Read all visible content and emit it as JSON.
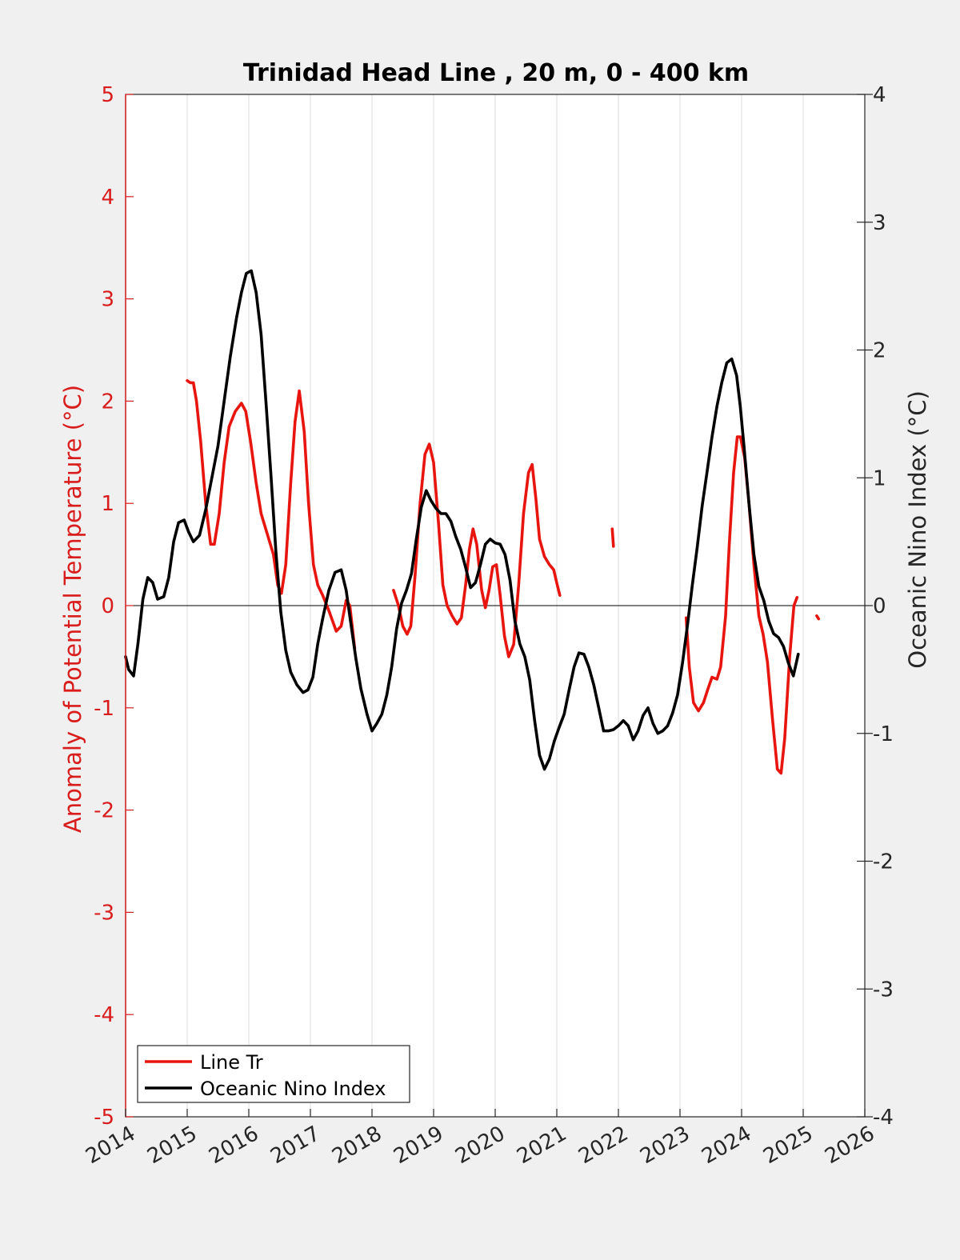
{
  "chart_data": {
    "type": "line",
    "title": "Trinidad Head Line , 20 m, 0 - 400 km",
    "ylabel_left": "Anomaly of Potential Temperature (°C)",
    "ylabel_right": "Oceanic Nino Index (°C)",
    "xlabel": "",
    "xlim": [
      2014,
      2026
    ],
    "ylim_left": [
      -5,
      5
    ],
    "ylim_right": [
      -4,
      4
    ],
    "xticks": [
      "2014",
      "2015",
      "2016",
      "2017",
      "2018",
      "2019",
      "2020",
      "2021",
      "2022",
      "2023",
      "2024",
      "2025",
      "2026"
    ],
    "yticks_left": [
      "5",
      "4",
      "3",
      "2",
      "1",
      "0",
      "-1",
      "-2",
      "-3",
      "-4",
      "-5"
    ],
    "yticks_right": [
      "4",
      "3",
      "2",
      "1",
      "0",
      "-1",
      "-2",
      "-3",
      "-4"
    ],
    "grid": "vertical",
    "zero_line": true,
    "legend_position": "bottom-left",
    "colors": {
      "line_tr": "#e8150f",
      "oni": "#000000",
      "left_axis": "#d91c1c",
      "background": "#f0f0f0",
      "plot_bg": "#ffffff",
      "grid": "#dddddd"
    },
    "series": [
      {
        "name": "Line Tr",
        "axis": "left",
        "color": "#e8150f",
        "segments": [
          [
            [
              2015.0,
              2.2
            ],
            [
              2015.05,
              2.18
            ],
            [
              2015.1,
              2.18
            ],
            [
              2015.15,
              2.0
            ],
            [
              2015.22,
              1.6
            ],
            [
              2015.3,
              1.0
            ],
            [
              2015.38,
              0.6
            ],
            [
              2015.44,
              0.6
            ],
            [
              2015.52,
              0.9
            ],
            [
              2015.6,
              1.4
            ],
            [
              2015.68,
              1.75
            ],
            [
              2015.78,
              1.9
            ],
            [
              2015.88,
              1.98
            ],
            [
              2015.95,
              1.9
            ],
            [
              2016.03,
              1.6
            ],
            [
              2016.12,
              1.2
            ],
            [
              2016.2,
              0.9
            ],
            [
              2016.3,
              0.7
            ],
            [
              2016.4,
              0.5
            ],
            [
              2016.47,
              0.2
            ],
            [
              2016.53,
              0.12
            ],
            [
              2016.6,
              0.4
            ],
            [
              2016.68,
              1.2
            ],
            [
              2016.75,
              1.8
            ],
            [
              2016.82,
              2.1
            ],
            [
              2016.9,
              1.7
            ],
            [
              2016.97,
              1.0
            ],
            [
              2017.05,
              0.4
            ],
            [
              2017.12,
              0.2
            ],
            [
              2017.2,
              0.1
            ],
            [
              2017.3,
              -0.05
            ],
            [
              2017.42,
              -0.25
            ],
            [
              2017.5,
              -0.2
            ],
            [
              2017.58,
              0.05
            ],
            [
              2017.64,
              0.0
            ],
            [
              2017.72,
              -0.42
            ]
          ],
          [
            [
              2018.35,
              0.15
            ],
            [
              2018.43,
              0.0
            ],
            [
              2018.5,
              -0.2
            ],
            [
              2018.57,
              -0.28
            ],
            [
              2018.63,
              -0.2
            ],
            [
              2018.7,
              0.3
            ],
            [
              2018.78,
              1.0
            ],
            [
              2018.86,
              1.48
            ],
            [
              2018.93,
              1.58
            ],
            [
              2019.0,
              1.4
            ],
            [
              2019.08,
              0.8
            ],
            [
              2019.15,
              0.2
            ],
            [
              2019.22,
              0.0
            ],
            [
              2019.3,
              -0.1
            ],
            [
              2019.38,
              -0.18
            ],
            [
              2019.45,
              -0.12
            ],
            [
              2019.52,
              0.2
            ],
            [
              2019.58,
              0.55
            ],
            [
              2019.64,
              0.75
            ],
            [
              2019.7,
              0.6
            ],
            [
              2019.78,
              0.15
            ],
            [
              2019.84,
              -0.02
            ],
            [
              2019.9,
              0.15
            ],
            [
              2019.96,
              0.38
            ],
            [
              2020.02,
              0.4
            ],
            [
              2020.08,
              0.1
            ],
            [
              2020.15,
              -0.3
            ],
            [
              2020.22,
              -0.5
            ],
            [
              2020.3,
              -0.38
            ],
            [
              2020.38,
              0.2
            ],
            [
              2020.46,
              0.9
            ],
            [
              2020.54,
              1.3
            ],
            [
              2020.6,
              1.38
            ],
            [
              2020.66,
              1.05
            ],
            [
              2020.72,
              0.65
            ],
            [
              2020.8,
              0.48
            ],
            [
              2020.88,
              0.4
            ],
            [
              2020.95,
              0.35
            ],
            [
              2021.0,
              0.22
            ],
            [
              2021.05,
              0.1
            ]
          ]
        ],
        "segments_2": [
          [
            [
              2021.9,
              0.75
            ],
            [
              2021.92,
              0.58
            ]
          ],
          [
            [
              2023.1,
              -0.12
            ],
            [
              2023.15,
              -0.6
            ],
            [
              2023.22,
              -0.95
            ],
            [
              2023.3,
              -1.03
            ],
            [
              2023.38,
              -0.95
            ],
            [
              2023.45,
              -0.82
            ],
            [
              2023.52,
              -0.7
            ],
            [
              2023.6,
              -0.72
            ],
            [
              2023.66,
              -0.6
            ],
            [
              2023.74,
              -0.1
            ],
            [
              2023.8,
              0.6
            ],
            [
              2023.87,
              1.3
            ],
            [
              2023.93,
              1.65
            ],
            [
              2023.98,
              1.65
            ],
            [
              2024.05,
              1.45
            ],
            [
              2024.12,
              1.0
            ],
            [
              2024.2,
              0.4
            ],
            [
              2024.28,
              -0.1
            ],
            [
              2024.35,
              -0.28
            ],
            [
              2024.42,
              -0.55
            ],
            [
              2024.5,
              -1.1
            ],
            [
              2024.58,
              -1.6
            ],
            [
              2024.64,
              -1.64
            ],
            [
              2024.7,
              -1.3
            ],
            [
              2024.78,
              -0.5
            ],
            [
              2024.85,
              0.0
            ],
            [
              2024.9,
              0.08
            ]
          ],
          [
            [
              2025.22,
              -0.1
            ],
            [
              2025.25,
              -0.13
            ]
          ]
        ]
      },
      {
        "name": "Oceanic Nino Index",
        "axis": "right",
        "color": "#000000",
        "segments": [
          [
            [
              2014.0,
              -0.4
            ],
            [
              2014.05,
              -0.5
            ],
            [
              2014.13,
              -0.55
            ],
            [
              2014.2,
              -0.3
            ],
            [
              2014.28,
              0.05
            ],
            [
              2014.36,
              0.22
            ],
            [
              2014.44,
              0.18
            ],
            [
              2014.52,
              0.05
            ],
            [
              2014.62,
              0.07
            ],
            [
              2014.7,
              0.22
            ],
            [
              2014.78,
              0.5
            ],
            [
              2014.86,
              0.65
            ],
            [
              2014.95,
              0.67
            ],
            [
              2015.02,
              0.58
            ],
            [
              2015.1,
              0.5
            ],
            [
              2015.2,
              0.55
            ],
            [
              2015.3,
              0.75
            ],
            [
              2015.4,
              1.0
            ],
            [
              2015.5,
              1.25
            ],
            [
              2015.6,
              1.6
            ],
            [
              2015.7,
              1.95
            ],
            [
              2015.8,
              2.25
            ],
            [
              2015.88,
              2.45
            ],
            [
              2015.96,
              2.6
            ],
            [
              2016.04,
              2.62
            ],
            [
              2016.12,
              2.45
            ],
            [
              2016.2,
              2.12
            ],
            [
              2016.28,
              1.58
            ],
            [
              2016.36,
              1.02
            ],
            [
              2016.44,
              0.42
            ],
            [
              2016.52,
              -0.05
            ],
            [
              2016.6,
              -0.35
            ],
            [
              2016.68,
              -0.52
            ],
            [
              2016.78,
              -0.62
            ],
            [
              2016.88,
              -0.68
            ],
            [
              2016.96,
              -0.66
            ],
            [
              2017.04,
              -0.56
            ],
            [
              2017.12,
              -0.3
            ],
            [
              2017.2,
              -0.1
            ],
            [
              2017.3,
              0.12
            ],
            [
              2017.4,
              0.26
            ],
            [
              2017.5,
              0.28
            ],
            [
              2017.58,
              0.12
            ],
            [
              2017.66,
              -0.15
            ],
            [
              2017.74,
              -0.42
            ],
            [
              2017.82,
              -0.65
            ],
            [
              2017.92,
              -0.85
            ],
            [
              2018.0,
              -0.98
            ],
            [
              2018.08,
              -0.92
            ],
            [
              2018.16,
              -0.85
            ],
            [
              2018.24,
              -0.7
            ],
            [
              2018.32,
              -0.48
            ],
            [
              2018.4,
              -0.18
            ],
            [
              2018.48,
              0.02
            ],
            [
              2018.56,
              0.12
            ],
            [
              2018.64,
              0.25
            ],
            [
              2018.72,
              0.52
            ],
            [
              2018.8,
              0.77
            ],
            [
              2018.88,
              0.9
            ],
            [
              2018.96,
              0.82
            ],
            [
              2019.04,
              0.76
            ],
            [
              2019.12,
              0.72
            ],
            [
              2019.2,
              0.72
            ],
            [
              2019.28,
              0.66
            ],
            [
              2019.36,
              0.54
            ],
            [
              2019.44,
              0.44
            ],
            [
              2019.52,
              0.3
            ],
            [
              2019.6,
              0.14
            ],
            [
              2019.68,
              0.18
            ],
            [
              2019.76,
              0.32
            ],
            [
              2019.84,
              0.48
            ],
            [
              2019.92,
              0.52
            ],
            [
              2020.0,
              0.49
            ],
            [
              2020.08,
              0.48
            ],
            [
              2020.16,
              0.4
            ],
            [
              2020.24,
              0.2
            ],
            [
              2020.32,
              -0.12
            ],
            [
              2020.4,
              -0.3
            ],
            [
              2020.48,
              -0.4
            ],
            [
              2020.56,
              -0.58
            ],
            [
              2020.64,
              -0.9
            ],
            [
              2020.72,
              -1.17
            ],
            [
              2020.8,
              -1.28
            ],
            [
              2020.88,
              -1.2
            ],
            [
              2020.96,
              -1.06
            ],
            [
              2021.04,
              -0.95
            ],
            [
              2021.12,
              -0.85
            ],
            [
              2021.2,
              -0.66
            ],
            [
              2021.28,
              -0.48
            ],
            [
              2021.36,
              -0.37
            ],
            [
              2021.44,
              -0.38
            ],
            [
              2021.52,
              -0.48
            ],
            [
              2021.6,
              -0.62
            ],
            [
              2021.68,
              -0.8
            ],
            [
              2021.76,
              -0.98
            ],
            [
              2021.84,
              -0.98
            ],
            [
              2021.92,
              -0.97
            ],
            [
              2022.0,
              -0.94
            ],
            [
              2022.08,
              -0.9
            ],
            [
              2022.16,
              -0.94
            ],
            [
              2022.24,
              -1.05
            ],
            [
              2022.32,
              -0.98
            ],
            [
              2022.4,
              -0.86
            ],
            [
              2022.48,
              -0.8
            ],
            [
              2022.56,
              -0.92
            ],
            [
              2022.64,
              -1.0
            ],
            [
              2022.72,
              -0.98
            ],
            [
              2022.8,
              -0.94
            ],
            [
              2022.88,
              -0.84
            ],
            [
              2022.96,
              -0.7
            ],
            [
              2023.04,
              -0.45
            ],
            [
              2023.12,
              -0.16
            ],
            [
              2023.2,
              0.16
            ],
            [
              2023.28,
              0.46
            ],
            [
              2023.36,
              0.78
            ],
            [
              2023.44,
              1.05
            ],
            [
              2023.52,
              1.32
            ],
            [
              2023.6,
              1.56
            ],
            [
              2023.68,
              1.75
            ],
            [
              2023.76,
              1.9
            ],
            [
              2023.84,
              1.93
            ],
            [
              2023.92,
              1.8
            ],
            [
              2023.98,
              1.55
            ],
            [
              2024.04,
              1.24
            ],
            [
              2024.12,
              0.8
            ],
            [
              2024.2,
              0.4
            ],
            [
              2024.28,
              0.15
            ],
            [
              2024.36,
              0.04
            ],
            [
              2024.44,
              -0.12
            ],
            [
              2024.52,
              -0.22
            ],
            [
              2024.6,
              -0.25
            ],
            [
              2024.68,
              -0.32
            ],
            [
              2024.76,
              -0.45
            ],
            [
              2024.84,
              -0.55
            ],
            [
              2024.92,
              -0.38
            ]
          ]
        ]
      }
    ]
  }
}
